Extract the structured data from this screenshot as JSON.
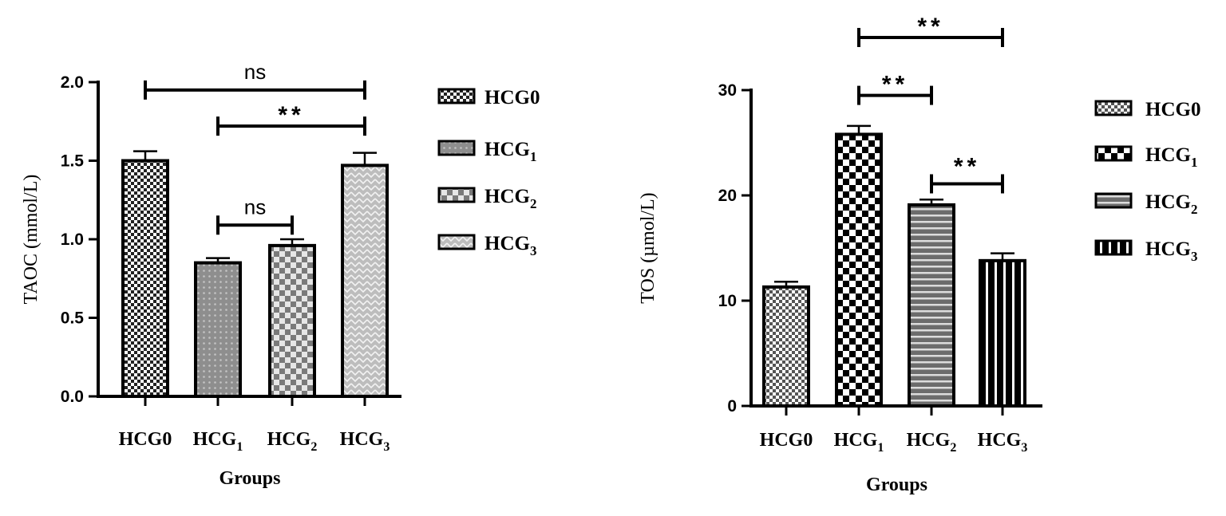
{
  "chart_data": [
    {
      "type": "bar",
      "ylabel": "TAOC (mmol/L)",
      "xlabel": "Groups",
      "ylim": [
        0,
        2.0
      ],
      "yticks": [
        "0.0",
        "0.5",
        "1.0",
        "1.5",
        "2.0"
      ],
      "categories": [
        "HCG0",
        "HCG1",
        "HCG2",
        "HCG3"
      ],
      "category_labels": [
        {
          "base": "HCG0",
          "sub": ""
        },
        {
          "base": "HCG",
          "sub": "1"
        },
        {
          "base": "HCG",
          "sub": "2"
        },
        {
          "base": "HCG",
          "sub": "3"
        }
      ],
      "values": [
        1.5,
        0.85,
        0.96,
        1.47
      ],
      "errors": [
        0.06,
        0.03,
        0.04,
        0.08
      ],
      "significance": [
        {
          "from": 0,
          "to": 3,
          "y": 1.95,
          "label": "ns",
          "ticks_down": true
        },
        {
          "from": 1,
          "to": 3,
          "y": 1.72,
          "label": "**",
          "ticks_down": true
        },
        {
          "from": 1,
          "to": 2,
          "y": 1.09,
          "label": "ns",
          "ticks_down": true
        }
      ],
      "legend": [
        {
          "base": "HCG0",
          "sub": ""
        },
        {
          "base": "HCG",
          "sub": "1"
        },
        {
          "base": "HCG",
          "sub": "2"
        },
        {
          "base": "HCG",
          "sub": "3"
        }
      ],
      "legend_position": "right"
    },
    {
      "type": "bar",
      "ylabel": "TOS (µmol/L)",
      "xlabel": "Groups",
      "ylim": [
        0,
        30
      ],
      "yticks": [
        "0",
        "10",
        "20",
        "30"
      ],
      "categories": [
        "HCG0",
        "HCG1",
        "HCG2",
        "HCG3"
      ],
      "category_labels": [
        {
          "base": "HCG0",
          "sub": ""
        },
        {
          "base": "HCG",
          "sub": "1"
        },
        {
          "base": "HCG",
          "sub": "2"
        },
        {
          "base": "HCG",
          "sub": "3"
        }
      ],
      "values": [
        11.3,
        25.8,
        19.1,
        13.8
      ],
      "errors": [
        0.5,
        0.8,
        0.5,
        0.7
      ],
      "significance": [
        {
          "from": 1,
          "to": 3,
          "y": 35.0,
          "label": "**",
          "ticks_down": true
        },
        {
          "from": 1,
          "to": 2,
          "y": 29.5,
          "label": "**",
          "ticks_down": true
        },
        {
          "from": 2,
          "to": 3,
          "y": 21.1,
          "label": "**",
          "ticks_down": false
        }
      ],
      "legend": [
        {
          "base": "HCG0",
          "sub": ""
        },
        {
          "base": "HCG",
          "sub": "1"
        },
        {
          "base": "HCG",
          "sub": "2"
        },
        {
          "base": "HCG",
          "sub": "3"
        }
      ],
      "legend_position": "right"
    }
  ]
}
